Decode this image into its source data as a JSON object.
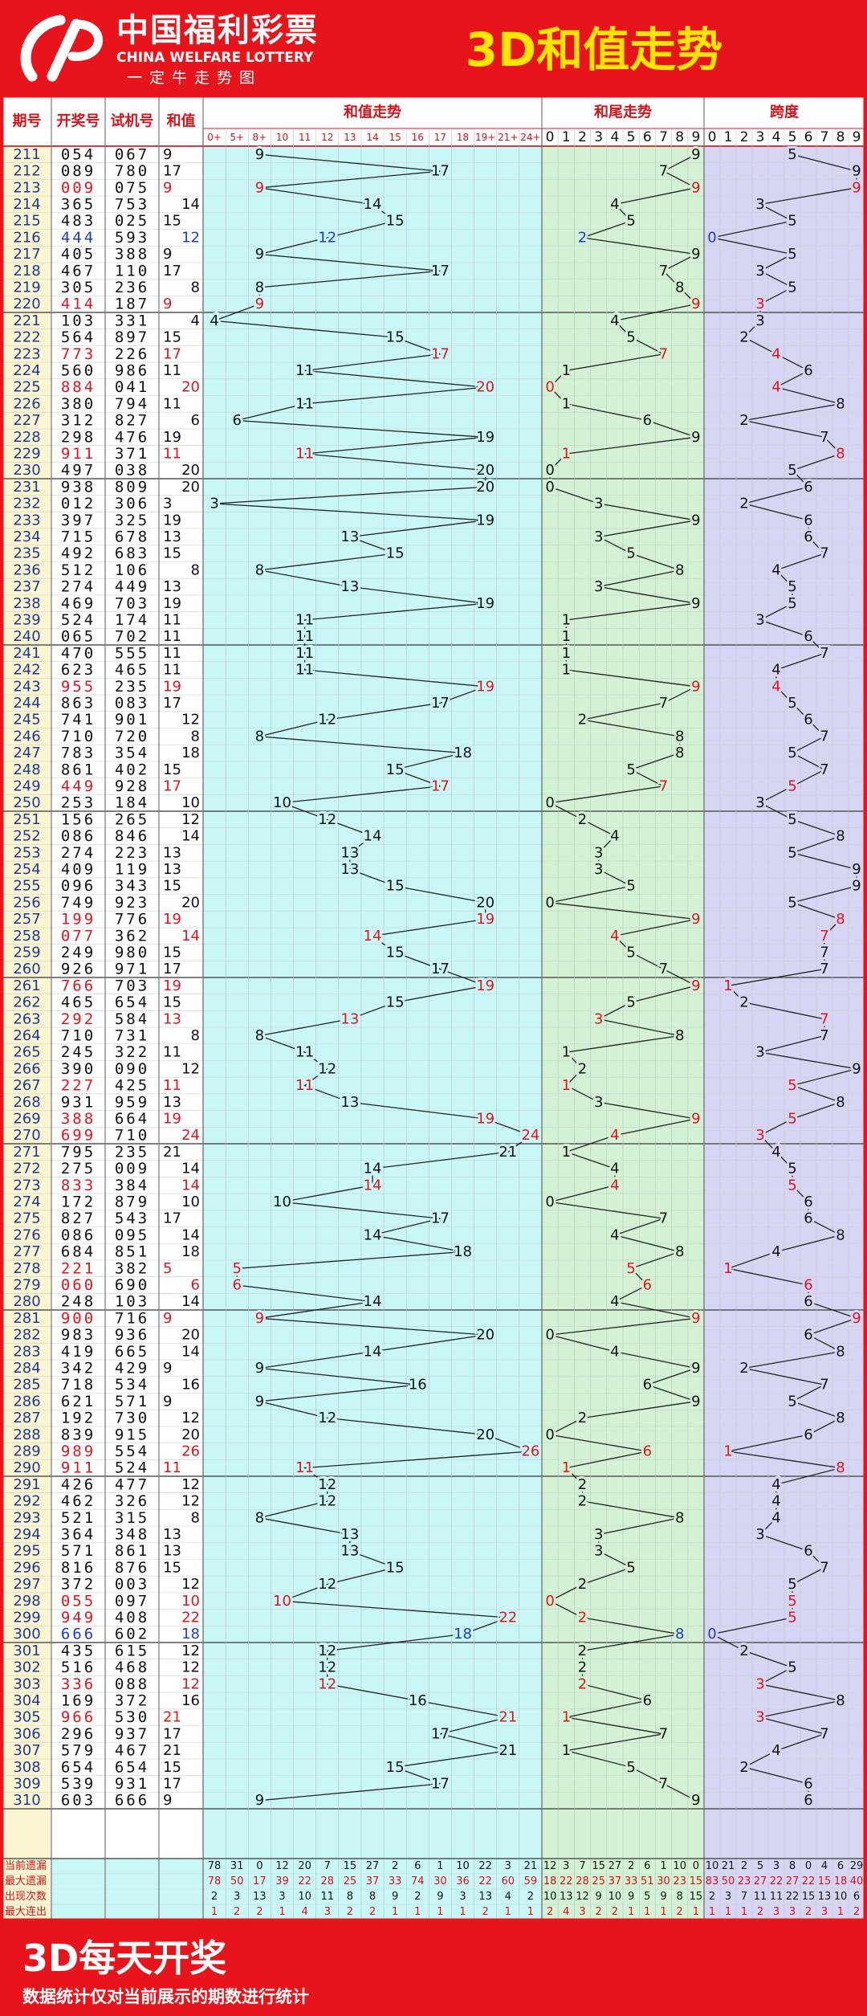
{
  "logo": {
    "cn": "中国福利彩票",
    "en": "CHINA WELFARE LOTTERY",
    "slogan": "一定牛走势图"
  },
  "chart_data": {
    "type": "trend",
    "title": "3D和值走势",
    "columns": {
      "issue": "期号",
      "draw": "开奖号",
      "test": "试机号",
      "sum": "和值",
      "sum_trend": "和值走势",
      "tail_trend": "和尾走势",
      "span_trend": "跨度"
    },
    "colors": {
      "text": "#111111",
      "pair": "#e3141b",
      "triple": "#1c3cc8",
      "line": "#222222"
    },
    "issues": [
      211,
      212,
      213,
      214,
      215,
      216,
      217,
      218,
      219,
      220,
      221,
      222,
      223,
      224,
      225,
      226,
      227,
      228,
      229,
      230,
      231,
      232,
      233,
      234,
      235,
      236,
      237,
      238,
      239,
      240,
      241,
      242,
      243,
      244,
      245,
      246,
      247,
      248,
      249,
      250,
      251,
      252,
      253,
      254,
      255,
      256,
      257,
      258,
      259,
      260,
      261,
      262,
      263,
      264,
      265,
      266,
      267,
      268,
      269,
      270,
      271,
      272,
      273,
      274,
      275,
      276,
      277,
      278,
      279,
      280,
      281,
      282,
      283,
      284,
      285,
      286,
      287,
      288,
      289,
      290,
      291,
      292,
      293,
      294,
      295,
      296,
      297,
      298,
      299,
      300,
      301,
      302,
      303,
      304,
      305,
      306,
      307,
      308,
      309,
      310
    ],
    "draws": [
      "054",
      "089",
      "009",
      "365",
      "483",
      "444",
      "405",
      "467",
      "305",
      "414",
      "103",
      "564",
      "773",
      "560",
      "884",
      "380",
      "312",
      "298",
      "911",
      "497",
      "938",
      "012",
      "397",
      "715",
      "492",
      "512",
      "274",
      "469",
      "524",
      "065",
      "470",
      "623",
      "955",
      "863",
      "741",
      "710",
      "783",
      "861",
      "449",
      "253",
      "156",
      "086",
      "274",
      "409",
      "096",
      "749",
      "199",
      "077",
      "249",
      "926",
      "766",
      "465",
      "292",
      "710",
      "245",
      "390",
      "227",
      "931",
      "388",
      "699",
      "795",
      "275",
      "833",
      "172",
      "827",
      "086",
      "684",
      "221",
      "060",
      "248",
      "900",
      "983",
      "419",
      "342",
      "718",
      "621",
      "192",
      "839",
      "989",
      "911",
      "426",
      "462",
      "521",
      "364",
      "571",
      "816",
      "372",
      "055",
      "949",
      "666",
      "435",
      "516",
      "336",
      "169",
      "966",
      "296",
      "579",
      "654",
      "539",
      "603"
    ],
    "test_numbers": [
      "067",
      "780",
      "075",
      "753",
      "025",
      "593",
      "388",
      "110",
      "236",
      "187",
      "331",
      "897",
      "226",
      "986",
      "041",
      "794",
      "827",
      "476",
      "371",
      "038",
      "809",
      "306",
      "325",
      "678",
      "683",
      "106",
      "449",
      "703",
      "174",
      "702",
      "555",
      "465",
      "235",
      "083",
      "901",
      "720",
      "354",
      "402",
      "928",
      "184",
      "265",
      "846",
      "223",
      "119",
      "343",
      "923",
      "776",
      "362",
      "980",
      "971",
      "703",
      "654",
      "584",
      "731",
      "322",
      "090",
      "425",
      "959",
      "664",
      "710",
      "235",
      "009",
      "384",
      "879",
      "543",
      "095",
      "851",
      "382",
      "690",
      "103",
      "716",
      "936",
      "665",
      "429",
      "534",
      "571",
      "730",
      "915",
      "554",
      "524",
      "477",
      "326",
      "315",
      "348",
      "861",
      "876",
      "003",
      "097",
      "408",
      "602",
      "615",
      "468",
      "088",
      "372",
      "530",
      "937",
      "467",
      "654",
      "931",
      "666"
    ],
    "sums": [
      9,
      17,
      9,
      14,
      15,
      12,
      9,
      17,
      8,
      9,
      4,
      15,
      17,
      11,
      20,
      11,
      6,
      19,
      11,
      20,
      20,
      3,
      19,
      13,
      15,
      8,
      13,
      19,
      11,
      11,
      11,
      11,
      19,
      17,
      12,
      8,
      18,
      15,
      17,
      10,
      12,
      14,
      13,
      13,
      15,
      20,
      19,
      14,
      15,
      17,
      19,
      15,
      13,
      8,
      11,
      12,
      11,
      13,
      19,
      24,
      21,
      14,
      14,
      10,
      17,
      14,
      18,
      5,
      6,
      14,
      9,
      20,
      14,
      9,
      16,
      9,
      12,
      20,
      26,
      11,
      12,
      12,
      8,
      13,
      13,
      15,
      12,
      10,
      22,
      18,
      12,
      12,
      12,
      16,
      21,
      17,
      21,
      15,
      17,
      9
    ],
    "tails": [
      9,
      7,
      9,
      4,
      5,
      2,
      9,
      7,
      8,
      9,
      4,
      5,
      7,
      1,
      0,
      1,
      6,
      9,
      1,
      0,
      0,
      3,
      9,
      3,
      5,
      8,
      3,
      9,
      1,
      1,
      1,
      1,
      9,
      7,
      2,
      8,
      8,
      5,
      7,
      0,
      2,
      4,
      3,
      3,
      5,
      0,
      9,
      4,
      5,
      7,
      9,
      5,
      3,
      8,
      1,
      2,
      1,
      3,
      9,
      4,
      1,
      4,
      4,
      0,
      7,
      4,
      8,
      5,
      6,
      4,
      9,
      0,
      4,
      9,
      6,
      9,
      2,
      0,
      6,
      1,
      2,
      2,
      8,
      3,
      3,
      5,
      2,
      0,
      2,
      8,
      2,
      2,
      2,
      6,
      1,
      7,
      1,
      5,
      7,
      9
    ],
    "spans": [
      5,
      9,
      9,
      3,
      5,
      0,
      5,
      3,
      5,
      3,
      3,
      2,
      4,
      6,
      4,
      8,
      2,
      7,
      8,
      5,
      6,
      2,
      6,
      6,
      7,
      4,
      5,
      5,
      3,
      6,
      7,
      4,
      4,
      5,
      6,
      7,
      5,
      7,
      5,
      3,
      5,
      8,
      5,
      9,
      9,
      5,
      8,
      7,
      7,
      7,
      1,
      2,
      7,
      7,
      3,
      9,
      5,
      8,
      5,
      3,
      4,
      5,
      5,
      6,
      6,
      8,
      4,
      1,
      6,
      6,
      9,
      6,
      8,
      2,
      7,
      5,
      8,
      6,
      1,
      8,
      4,
      4,
      4,
      3,
      6,
      7,
      5,
      5,
      5,
      0,
      2,
      5,
      3,
      8,
      3,
      7,
      4,
      2,
      6,
      6
    ],
    "sum_ticks": [
      {
        "value": 0,
        "label": "0+"
      },
      {
        "value": 5,
        "label": "5+"
      },
      {
        "value": 8,
        "label": "8+"
      },
      10,
      11,
      12,
      13,
      14,
      15,
      16,
      17,
      18,
      {
        "value": 19,
        "label": "19+"
      },
      {
        "value": 21,
        "label": "21+"
      },
      {
        "value": 24,
        "label": "24+"
      }
    ],
    "tail_ticks": [
      0,
      1,
      2,
      3,
      4,
      5,
      6,
      7,
      8,
      9
    ],
    "span_ticks": [
      0,
      1,
      2,
      3,
      4,
      5,
      6,
      7,
      8,
      9
    ],
    "stats": {
      "labels": [
        "当前遗漏",
        "最大遗漏",
        "出现次数",
        "最大连出"
      ],
      "sum": [
        [
          78,
          31,
          0,
          12,
          20,
          7,
          15,
          27,
          2,
          6,
          1,
          10,
          22,
          3,
          21
        ],
        [
          78,
          50,
          17,
          39,
          22,
          28,
          25,
          37,
          33,
          74,
          30,
          36,
          22,
          60,
          59
        ],
        [
          2,
          3,
          13,
          3,
          10,
          11,
          8,
          8,
          9,
          2,
          9,
          3,
          13,
          4,
          2
        ],
        [
          1,
          2,
          2,
          1,
          4,
          3,
          2,
          2,
          1,
          1,
          1,
          1,
          2,
          1,
          1
        ]
      ],
      "tail": [
        [
          12,
          3,
          7,
          15,
          27,
          2,
          6,
          1,
          10,
          0
        ],
        [
          18,
          22,
          28,
          25,
          37,
          33,
          51,
          30,
          23,
          15
        ],
        [
          10,
          13,
          12,
          9,
          10,
          9,
          5,
          9,
          8,
          15
        ],
        [
          2,
          4,
          3,
          2,
          2,
          1,
          1,
          1,
          2,
          1
        ]
      ],
      "span": [
        [
          10,
          21,
          2,
          5,
          3,
          8,
          0,
          4,
          6,
          29
        ],
        [
          83,
          50,
          23,
          27,
          22,
          27,
          22,
          15,
          18,
          40
        ],
        [
          2,
          3,
          7,
          11,
          11,
          22,
          15,
          13,
          10,
          6
        ],
        [
          1,
          1,
          1,
          2,
          3,
          3,
          2,
          3,
          1,
          2
        ]
      ]
    }
  },
  "footer": {
    "title": "3D每天开奖",
    "note": "数据统计仅对当前展示的期数进行统计"
  }
}
